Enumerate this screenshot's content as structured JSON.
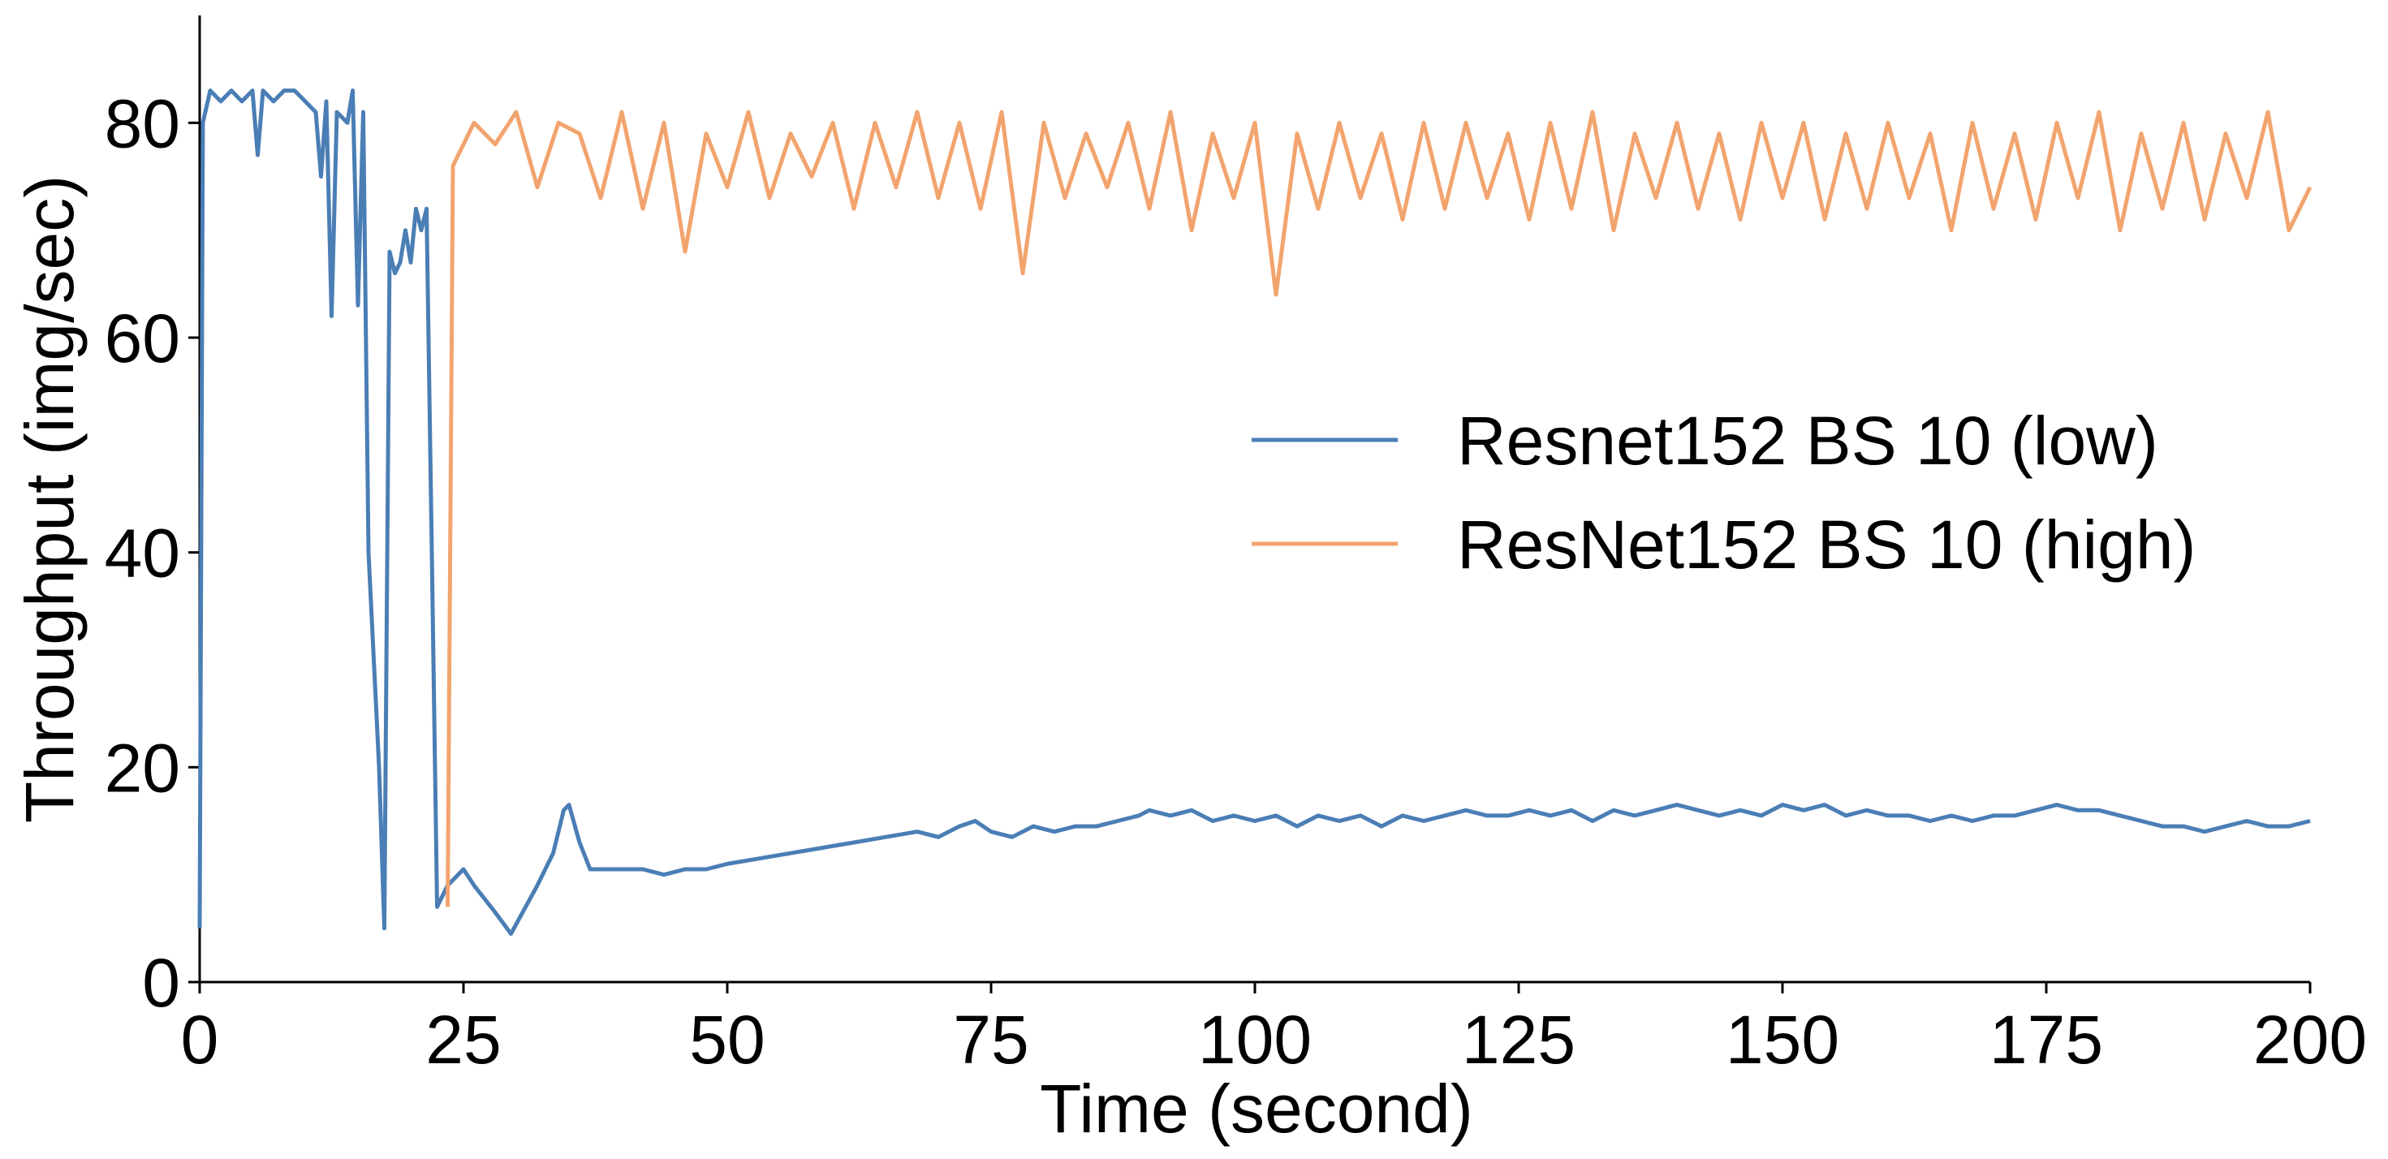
{
  "chart_data": {
    "type": "line",
    "x_label": "Time (second)",
    "y_label": "Throughput (img/sec)",
    "xlim": [
      0,
      200
    ],
    "xticks": [
      0,
      25,
      50,
      75,
      100,
      125,
      150,
      175,
      200
    ],
    "ylim": [
      0,
      90
    ],
    "yticks": [
      0,
      20,
      40,
      60,
      80
    ],
    "grid": false,
    "legend": "center right",
    "series": [
      {
        "name": "Resnet152 BS 10 (low)",
        "color": "#4a7eb5",
        "x": [
          0,
          0.3,
          1,
          2,
          3,
          4,
          5,
          5.5,
          6,
          7,
          8,
          9,
          10,
          11,
          11.5,
          12,
          12.5,
          13,
          14,
          14.5,
          15,
          15.5,
          16,
          17,
          17.5,
          18,
          18.5,
          19,
          19.5,
          20,
          20.5,
          21,
          21.5,
          22,
          22.5,
          23.5,
          25,
          26,
          28,
          29.5,
          32,
          33.5,
          34.5,
          35,
          36,
          37,
          40,
          42,
          44,
          46,
          48,
          50,
          53,
          56,
          59,
          62,
          65,
          68,
          70,
          72,
          73.5,
          75,
          77,
          79,
          81,
          83,
          85,
          87,
          89,
          90,
          92,
          94,
          96,
          98,
          100,
          102,
          104,
          106,
          108,
          110,
          112,
          114,
          116,
          118,
          120,
          122,
          124,
          126,
          128,
          130,
          132,
          134,
          136,
          138,
          140,
          142,
          144,
          146,
          148,
          150,
          152,
          154,
          156,
          158,
          160,
          162,
          164,
          166,
          168,
          170,
          172,
          174,
          176,
          178,
          180,
          182,
          184,
          186,
          188,
          190,
          192,
          194,
          196,
          198,
          200
        ],
        "values": [
          5,
          80,
          83,
          82,
          83,
          82,
          83,
          77,
          83,
          82,
          83,
          83,
          82,
          81,
          75,
          82,
          62,
          81,
          80,
          83,
          63,
          81,
          40,
          20,
          5,
          68,
          66,
          67,
          70,
          67,
          72,
          70,
          72,
          40,
          7,
          9,
          10.5,
          9,
          6.5,
          4.5,
          9,
          12,
          16,
          16.5,
          13,
          10.5,
          10.5,
          10.5,
          10,
          10.5,
          10.5,
          11,
          11.5,
          12,
          12.5,
          13,
          13.5,
          14,
          13.5,
          14.5,
          15,
          14,
          13.5,
          14.5,
          14,
          14.5,
          14.5,
          15,
          15.5,
          16,
          15.5,
          16,
          15,
          15.5,
          15,
          15.5,
          14.5,
          15.5,
          15,
          15.5,
          14.5,
          15.5,
          15,
          15.5,
          16,
          15.5,
          15.5,
          16,
          15.5,
          16,
          15,
          16,
          15.5,
          16,
          16.5,
          16,
          15.5,
          16,
          15.5,
          16.5,
          16,
          16.5,
          15.5,
          16,
          15.5,
          15.5,
          15,
          15.5,
          15,
          15.5,
          15.5,
          16,
          16.5,
          16,
          16,
          15.5,
          15,
          14.5,
          14.5,
          14,
          14.5,
          15,
          14.5,
          14.5,
          15
        ]
      },
      {
        "name": "ResNet152 BS 10 (high)",
        "color": "#f2a46e",
        "x": [
          23.5,
          24,
          26,
          28,
          30,
          32,
          34,
          36,
          38,
          40,
          42,
          44,
          46,
          48,
          50,
          52,
          54,
          56,
          58,
          60,
          62,
          64,
          66,
          68,
          70,
          72,
          74,
          76,
          78,
          80,
          82,
          84,
          86,
          88,
          90,
          92,
          94,
          96,
          98,
          100,
          102,
          104,
          106,
          108,
          110,
          112,
          114,
          116,
          118,
          120,
          122,
          124,
          126,
          128,
          130,
          132,
          134,
          136,
          138,
          140,
          142,
          144,
          146,
          148,
          150,
          152,
          154,
          156,
          158,
          160,
          162,
          164,
          166,
          168,
          170,
          172,
          174,
          176,
          178,
          180,
          182,
          184,
          186,
          188,
          190,
          192,
          194,
          196,
          198,
          200
        ],
        "values": [
          7,
          76,
          80,
          78,
          81,
          74,
          80,
          79,
          73,
          81,
          72,
          80,
          68,
          79,
          74,
          81,
          73,
          79,
          75,
          80,
          72,
          80,
          74,
          81,
          73,
          80,
          72,
          81,
          66,
          80,
          73,
          79,
          74,
          80,
          72,
          81,
          70,
          79,
          73,
          80,
          64,
          79,
          72,
          80,
          73,
          79,
          71,
          80,
          72,
          80,
          73,
          79,
          71,
          80,
          72,
          81,
          70,
          79,
          73,
          80,
          72,
          79,
          71,
          80,
          73,
          80,
          71,
          79,
          72,
          80,
          73,
          79,
          70,
          80,
          72,
          79,
          71,
          80,
          73,
          81,
          70,
          79,
          72,
          80,
          71,
          79,
          73,
          81,
          70,
          74
        ]
      }
    ]
  }
}
